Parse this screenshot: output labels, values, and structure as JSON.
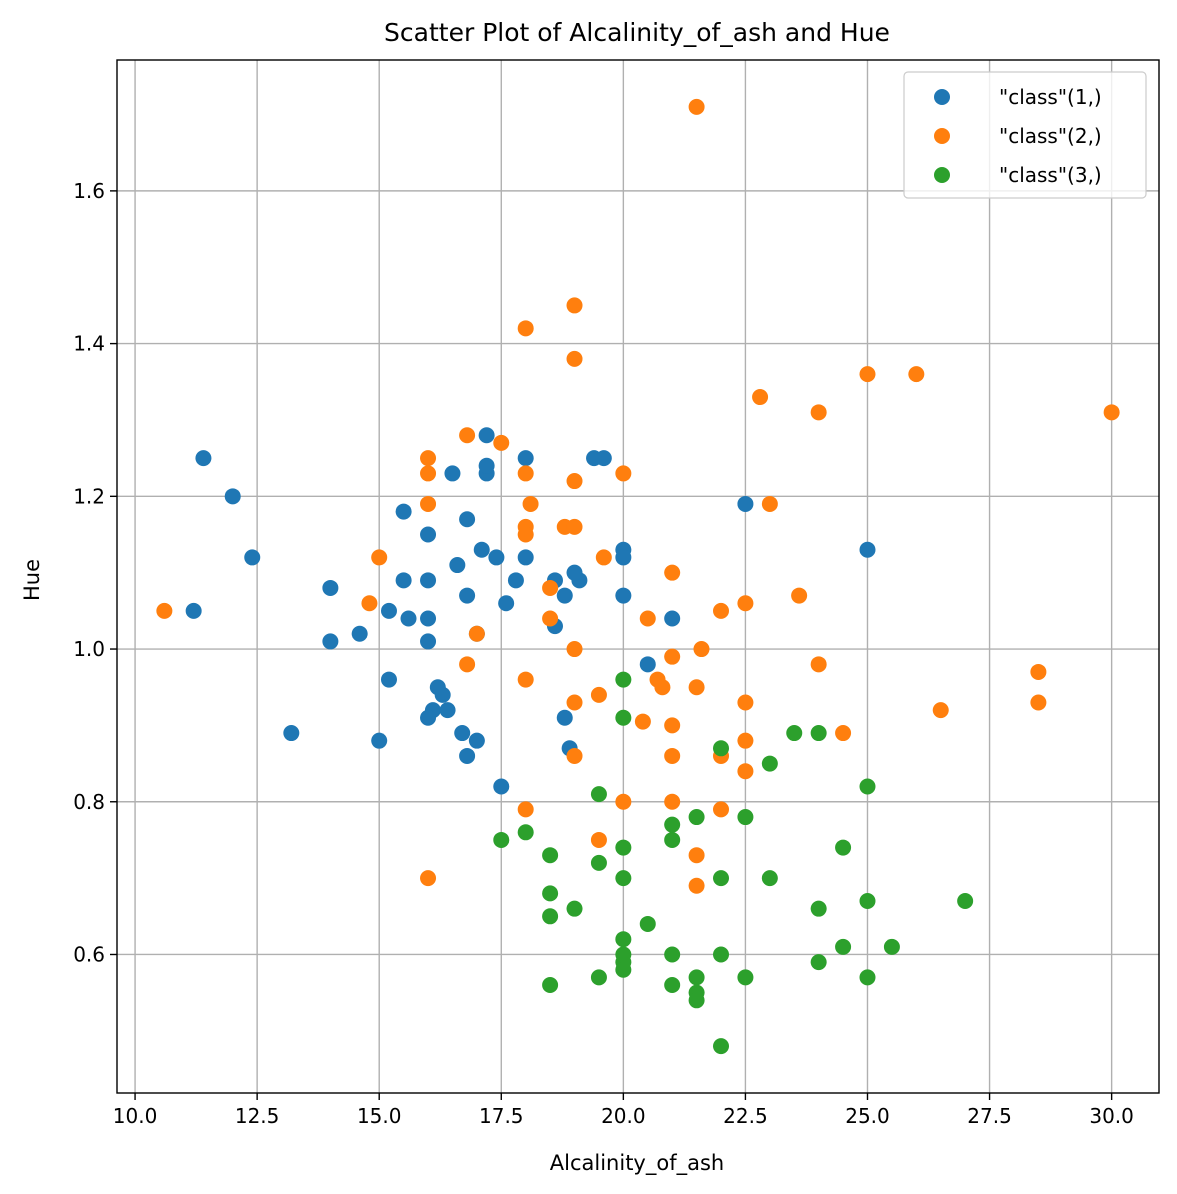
{
  "chart_data": {
    "type": "scatter",
    "title": "Scatter Plot of Alcalinity_of_ash and Hue",
    "xlabel": "Alcalinity_of_ash",
    "ylabel": "Hue",
    "xlim": [
      9.63,
      30.97
    ],
    "ylim": [
      0.4186,
      1.7714
    ],
    "xticks": [
      10.0,
      12.5,
      15.0,
      17.5,
      20.0,
      22.5,
      25.0,
      27.5,
      30.0
    ],
    "xtick_labels": [
      "10.0",
      "12.5",
      "15.0",
      "17.5",
      "20.0",
      "22.5",
      "25.0",
      "27.5",
      "30.0"
    ],
    "yticks": [
      0.6,
      0.8,
      1.0,
      1.2,
      1.4,
      1.6
    ],
    "ytick_labels": [
      "0.6",
      "0.8",
      "1.0",
      "1.2",
      "1.4",
      "1.6"
    ],
    "grid": true,
    "legend_position": "top-right",
    "series": [
      {
        "name": "\"class\"(1,)",
        "color": "#1f77b4",
        "points": [
          [
            15.6,
            1.04
          ],
          [
            11.2,
            1.05
          ],
          [
            18.6,
            1.03
          ],
          [
            16.8,
            0.86
          ],
          [
            21.0,
            1.04
          ],
          [
            15.2,
            1.05
          ],
          [
            14.6,
            1.02
          ],
          [
            17.6,
            1.06
          ],
          [
            14.0,
            1.08
          ],
          [
            16.0,
            1.01
          ],
          [
            18.0,
            1.25
          ],
          [
            16.8,
            1.17
          ],
          [
            16.0,
            1.15
          ],
          [
            11.4,
            1.25
          ],
          [
            12.0,
            1.2
          ],
          [
            17.2,
            1.28
          ],
          [
            20.0,
            1.07
          ],
          [
            20.0,
            1.13
          ],
          [
            16.5,
            1.23
          ],
          [
            15.2,
            0.96
          ],
          [
            16.0,
            1.09
          ],
          [
            18.6,
            1.09
          ],
          [
            16.6,
            1.11
          ],
          [
            17.8,
            1.09
          ],
          [
            20.0,
            1.12
          ],
          [
            25.0,
            1.13
          ],
          [
            16.1,
            0.92
          ],
          [
            17.0,
            1.02
          ],
          [
            19.1,
            1.09
          ],
          [
            19.6,
            1.25
          ],
          [
            16.8,
            1.07
          ],
          [
            17.4,
            1.12
          ],
          [
            14.0,
            1.01
          ],
          [
            18.8,
            1.07
          ],
          [
            16.0,
            0.91
          ],
          [
            17.2,
            1.23
          ],
          [
            18.0,
            1.12
          ],
          [
            16.3,
            0.94
          ],
          [
            19.0,
            1.1
          ],
          [
            16.7,
            0.89
          ],
          [
            17.2,
            1.24
          ],
          [
            16.0,
            1.04
          ],
          [
            18.8,
            0.91
          ],
          [
            17.5,
            0.82
          ],
          [
            20.5,
            0.98
          ],
          [
            16.2,
            0.95
          ],
          [
            22.5,
            1.19
          ],
          [
            13.2,
            0.89
          ],
          [
            15.5,
            1.18
          ],
          [
            12.4,
            1.12
          ],
          [
            15.5,
            1.09
          ],
          [
            16.4,
            0.92
          ],
          [
            17.1,
            1.13
          ],
          [
            18.9,
            0.87
          ],
          [
            15.0,
            0.88
          ],
          [
            17.0,
            0.88
          ],
          [
            19.4,
            1.25
          ]
        ]
      },
      {
        "name": "\"class\"(2,)",
        "color": "#ff7f0e",
        "points": [
          [
            10.6,
            1.05
          ],
          [
            16.0,
            0.7
          ],
          [
            16.8,
            1.28
          ],
          [
            18.0,
            1.42
          ],
          [
            19.0,
            1.45
          ],
          [
            19.0,
            1.38
          ],
          [
            18.1,
            1.19
          ],
          [
            21.5,
            1.71
          ],
          [
            17.5,
            1.27
          ],
          [
            16.0,
            1.25
          ],
          [
            16.0,
            1.23
          ],
          [
            17.0,
            1.02
          ],
          [
            18.0,
            0.96
          ],
          [
            15.0,
            1.12
          ],
          [
            14.8,
            1.06
          ],
          [
            16.0,
            1.19
          ],
          [
            19.0,
            1.22
          ],
          [
            18.0,
            1.23
          ],
          [
            18.0,
            1.16
          ],
          [
            18.0,
            1.15
          ],
          [
            18.8,
            1.16
          ],
          [
            19.0,
            1.16
          ],
          [
            19.6,
            1.12
          ],
          [
            20.0,
            1.23
          ],
          [
            21.0,
            1.1
          ],
          [
            18.5,
            1.08
          ],
          [
            18.5,
            1.04
          ],
          [
            20.5,
            1.04
          ],
          [
            19.0,
            1.0
          ],
          [
            21.6,
            1.0
          ],
          [
            21.0,
            0.99
          ],
          [
            20.7,
            0.96
          ],
          [
            22.0,
            1.05
          ],
          [
            22.5,
            1.06
          ],
          [
            23.0,
            1.19
          ],
          [
            22.8,
            1.33
          ],
          [
            24.0,
            1.31
          ],
          [
            25.0,
            1.36
          ],
          [
            26.0,
            1.36
          ],
          [
            30.0,
            1.31
          ],
          [
            23.6,
            1.07
          ],
          [
            24.0,
            0.98
          ],
          [
            16.8,
            0.98
          ],
          [
            19.0,
            0.93
          ],
          [
            19.5,
            0.94
          ],
          [
            20.4,
            0.905
          ],
          [
            20.8,
            0.95
          ],
          [
            21.0,
            0.9
          ],
          [
            21.5,
            0.95
          ],
          [
            22.5,
            0.93
          ],
          [
            19.0,
            0.86
          ],
          [
            21.0,
            0.86
          ],
          [
            22.0,
            0.86
          ],
          [
            22.5,
            0.88
          ],
          [
            22.5,
            0.84
          ],
          [
            24.5,
            0.89
          ],
          [
            26.5,
            0.92
          ],
          [
            28.5,
            0.97
          ],
          [
            28.5,
            0.93
          ],
          [
            18.0,
            0.79
          ],
          [
            20.0,
            0.8
          ],
          [
            21.0,
            0.8
          ],
          [
            22.0,
            0.79
          ],
          [
            19.5,
            0.75
          ],
          [
            21.5,
            0.73
          ],
          [
            21.5,
            0.69
          ]
        ]
      },
      {
        "name": "\"class\"(3,)",
        "color": "#2ca02c",
        "points": [
          [
            20.0,
            0.96
          ],
          [
            20.0,
            0.91
          ],
          [
            22.0,
            0.87
          ],
          [
            23.5,
            0.89
          ],
          [
            24.0,
            0.89
          ],
          [
            23.0,
            0.85
          ],
          [
            25.0,
            0.82
          ],
          [
            19.5,
            0.81
          ],
          [
            21.5,
            0.78
          ],
          [
            22.5,
            0.78
          ],
          [
            21.0,
            0.77
          ],
          [
            17.5,
            0.75
          ],
          [
            18.0,
            0.76
          ],
          [
            21.0,
            0.75
          ],
          [
            20.0,
            0.74
          ],
          [
            24.5,
            0.74
          ],
          [
            18.5,
            0.73
          ],
          [
            19.5,
            0.72
          ],
          [
            20.0,
            0.7
          ],
          [
            22.0,
            0.7
          ],
          [
            23.0,
            0.7
          ],
          [
            18.5,
            0.68
          ],
          [
            25.0,
            0.67
          ],
          [
            27.0,
            0.67
          ],
          [
            19.0,
            0.66
          ],
          [
            24.0,
            0.66
          ],
          [
            18.5,
            0.65
          ],
          [
            20.5,
            0.64
          ],
          [
            20.0,
            0.62
          ],
          [
            21.0,
            0.6
          ],
          [
            22.0,
            0.6
          ],
          [
            20.0,
            0.6
          ],
          [
            24.5,
            0.61
          ],
          [
            25.5,
            0.61
          ],
          [
            20.0,
            0.59
          ],
          [
            24.0,
            0.59
          ],
          [
            20.0,
            0.58
          ],
          [
            19.5,
            0.57
          ],
          [
            21.5,
            0.57
          ],
          [
            22.5,
            0.57
          ],
          [
            25.0,
            0.57
          ],
          [
            18.5,
            0.56
          ],
          [
            21.0,
            0.56
          ],
          [
            21.5,
            0.55
          ],
          [
            21.5,
            0.54
          ],
          [
            22.0,
            0.48
          ]
        ]
      }
    ]
  }
}
